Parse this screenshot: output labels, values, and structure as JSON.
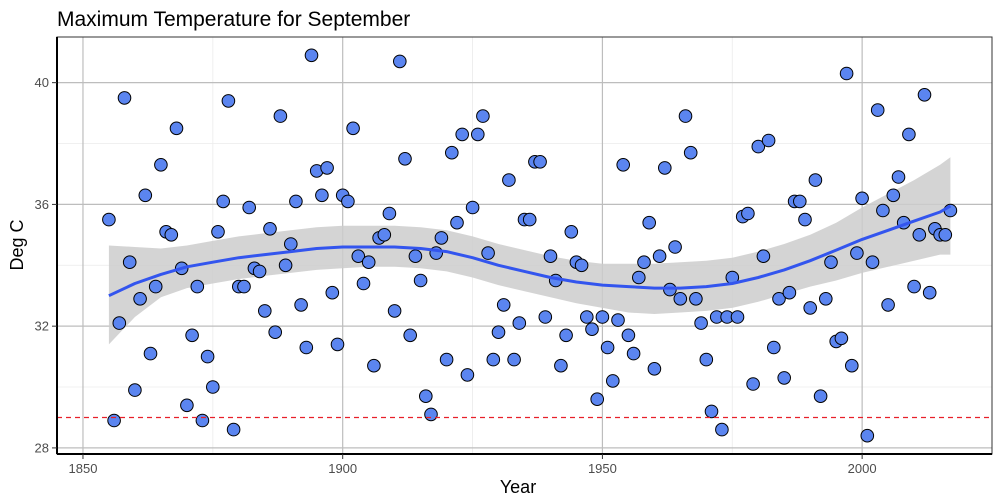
{
  "chart_data": {
    "type": "scatter",
    "title": "Maximum Temperature for September",
    "xlabel": "Year",
    "ylabel": "Deg C",
    "xlim": [
      1845,
      2025
    ],
    "ylim": [
      27.8,
      41.5
    ],
    "x_ticks": [
      1850,
      1900,
      1950,
      2000
    ],
    "y_ticks": [
      28,
      32,
      36,
      40
    ],
    "x_minor_ticks": [
      1875,
      1925,
      1975
    ],
    "y_minor_ticks": [
      30,
      34,
      38
    ],
    "grid": true,
    "point_fill": "#5b85f0",
    "point_stroke": "#000000",
    "smooth_color": "#3355ee",
    "ribbon_color": "#cccccc",
    "reference_line": {
      "y": 29.0,
      "color": "#e8202a",
      "style": "dashed"
    },
    "points": [
      [
        1855,
        35.5
      ],
      [
        1856,
        28.9
      ],
      [
        1857,
        32.1
      ],
      [
        1858,
        39.5
      ],
      [
        1859,
        34.1
      ],
      [
        1860,
        29.9
      ],
      [
        1861,
        32.9
      ],
      [
        1862,
        36.3
      ],
      [
        1863,
        31.1
      ],
      [
        1864,
        33.3
      ],
      [
        1865,
        37.3
      ],
      [
        1866,
        35.1
      ],
      [
        1867,
        35.0
      ],
      [
        1868,
        38.5
      ],
      [
        1869,
        33.9
      ],
      [
        1870,
        29.4
      ],
      [
        1871,
        31.7
      ],
      [
        1872,
        33.3
      ],
      [
        1873,
        28.9
      ],
      [
        1874,
        31.0
      ],
      [
        1875,
        30.0
      ],
      [
        1876,
        35.1
      ],
      [
        1877,
        36.1
      ],
      [
        1878,
        39.4
      ],
      [
        1879,
        28.6
      ],
      [
        1880,
        33.3
      ],
      [
        1881,
        33.3
      ],
      [
        1882,
        35.9
      ],
      [
        1883,
        33.9
      ],
      [
        1884,
        33.8
      ],
      [
        1885,
        32.5
      ],
      [
        1886,
        35.2
      ],
      [
        1887,
        31.8
      ],
      [
        1888,
        38.9
      ],
      [
        1889,
        34.0
      ],
      [
        1890,
        34.7
      ],
      [
        1891,
        36.1
      ],
      [
        1892,
        32.7
      ],
      [
        1893,
        31.3
      ],
      [
        1894,
        40.9
      ],
      [
        1895,
        37.1
      ],
      [
        1896,
        36.3
      ],
      [
        1897,
        37.2
      ],
      [
        1898,
        33.1
      ],
      [
        1899,
        31.4
      ],
      [
        1900,
        36.3
      ],
      [
        1901,
        36.1
      ],
      [
        1902,
        38.5
      ],
      [
        1903,
        34.3
      ],
      [
        1904,
        33.4
      ],
      [
        1905,
        34.1
      ],
      [
        1906,
        30.7
      ],
      [
        1907,
        34.9
      ],
      [
        1908,
        35.0
      ],
      [
        1909,
        35.7
      ],
      [
        1910,
        32.5
      ],
      [
        1911,
        40.7
      ],
      [
        1912,
        37.5
      ],
      [
        1913,
        31.7
      ],
      [
        1914,
        34.3
      ],
      [
        1915,
        33.5
      ],
      [
        1916,
        29.7
      ],
      [
        1917,
        29.1
      ],
      [
        1918,
        34.4
      ],
      [
        1919,
        34.9
      ],
      [
        1920,
        30.9
      ],
      [
        1921,
        37.7
      ],
      [
        1922,
        35.4
      ],
      [
        1923,
        38.3
      ],
      [
        1924,
        30.4
      ],
      [
        1925,
        35.9
      ],
      [
        1926,
        38.3
      ],
      [
        1927,
        38.9
      ],
      [
        1928,
        34.4
      ],
      [
        1929,
        30.9
      ],
      [
        1930,
        31.8
      ],
      [
        1931,
        32.7
      ],
      [
        1932,
        36.8
      ],
      [
        1933,
        30.9
      ],
      [
        1934,
        32.1
      ],
      [
        1935,
        35.5
      ],
      [
        1936,
        35.5
      ],
      [
        1937,
        37.4
      ],
      [
        1938,
        37.4
      ],
      [
        1939,
        32.3
      ],
      [
        1940,
        34.3
      ],
      [
        1941,
        33.5
      ],
      [
        1942,
        30.7
      ],
      [
        1943,
        31.7
      ],
      [
        1944,
        35.1
      ],
      [
        1945,
        34.1
      ],
      [
        1946,
        34.0
      ],
      [
        1947,
        32.3
      ],
      [
        1948,
        31.9
      ],
      [
        1949,
        29.6
      ],
      [
        1950,
        32.3
      ],
      [
        1951,
        31.3
      ],
      [
        1952,
        30.2
      ],
      [
        1953,
        32.2
      ],
      [
        1954,
        37.3
      ],
      [
        1955,
        31.7
      ],
      [
        1956,
        31.1
      ],
      [
        1957,
        33.6
      ],
      [
        1958,
        34.1
      ],
      [
        1959,
        35.4
      ],
      [
        1960,
        30.6
      ],
      [
        1961,
        34.3
      ],
      [
        1962,
        37.2
      ],
      [
        1963,
        33.2
      ],
      [
        1964,
        34.6
      ],
      [
        1965,
        32.9
      ],
      [
        1966,
        38.9
      ],
      [
        1967,
        37.7
      ],
      [
        1968,
        32.9
      ],
      [
        1969,
        32.1
      ],
      [
        1970,
        30.9
      ],
      [
        1971,
        29.2
      ],
      [
        1972,
        32.3
      ],
      [
        1973,
        28.6
      ],
      [
        1974,
        32.3
      ],
      [
        1975,
        33.6
      ],
      [
        1976,
        32.3
      ],
      [
        1977,
        35.6
      ],
      [
        1978,
        35.7
      ],
      [
        1979,
        30.1
      ],
      [
        1980,
        37.9
      ],
      [
        1981,
        34.3
      ],
      [
        1982,
        38.1
      ],
      [
        1983,
        31.3
      ],
      [
        1984,
        32.9
      ],
      [
        1985,
        30.3
      ],
      [
        1986,
        33.1
      ],
      [
        1987,
        36.1
      ],
      [
        1988,
        36.1
      ],
      [
        1989,
        35.5
      ],
      [
        1990,
        32.6
      ],
      [
        1991,
        36.8
      ],
      [
        1992,
        29.7
      ],
      [
        1993,
        32.9
      ],
      [
        1994,
        34.1
      ],
      [
        1995,
        31.5
      ],
      [
        1996,
        31.6
      ],
      [
        1997,
        40.3
      ],
      [
        1998,
        30.7
      ],
      [
        1999,
        34.4
      ],
      [
        2000,
        36.2
      ],
      [
        2001,
        28.4
      ],
      [
        2002,
        34.1
      ],
      [
        2003,
        39.1
      ],
      [
        2004,
        35.8
      ],
      [
        2005,
        32.7
      ],
      [
        2006,
        36.3
      ],
      [
        2007,
        36.9
      ],
      [
        2008,
        35.4
      ],
      [
        2009,
        38.3
      ],
      [
        2010,
        33.3
      ],
      [
        2011,
        35.0
      ],
      [
        2012,
        39.6
      ],
      [
        2013,
        33.1
      ],
      [
        2014,
        35.2
      ],
      [
        2015,
        35.0
      ],
      [
        2016,
        35.0
      ],
      [
        2017,
        35.8
      ]
    ],
    "smooth": {
      "x": [
        1855,
        1860,
        1865,
        1870,
        1875,
        1880,
        1885,
        1890,
        1895,
        1900,
        1905,
        1910,
        1915,
        1920,
        1925,
        1930,
        1935,
        1940,
        1945,
        1950,
        1955,
        1960,
        1965,
        1970,
        1975,
        1980,
        1985,
        1990,
        1995,
        2000,
        2005,
        2010,
        2015,
        2017
      ],
      "y": [
        33.0,
        33.4,
        33.7,
        33.95,
        34.1,
        34.25,
        34.35,
        34.45,
        34.55,
        34.6,
        34.6,
        34.6,
        34.55,
        34.45,
        34.25,
        34.0,
        33.8,
        33.6,
        33.45,
        33.35,
        33.3,
        33.25,
        33.25,
        33.3,
        33.4,
        33.6,
        33.85,
        34.15,
        34.5,
        34.85,
        35.15,
        35.45,
        35.75,
        35.95
      ],
      "lower": [
        31.4,
        32.3,
        32.95,
        33.25,
        33.4,
        33.55,
        33.65,
        33.75,
        33.85,
        33.9,
        33.95,
        33.95,
        33.9,
        33.8,
        33.6,
        33.35,
        33.15,
        32.95,
        32.75,
        32.6,
        32.45,
        32.4,
        32.45,
        32.5,
        32.6,
        32.8,
        33.05,
        33.3,
        33.5,
        33.75,
        33.95,
        34.15,
        34.35,
        34.35
      ],
      "upper": [
        34.65,
        34.6,
        34.55,
        34.65,
        34.8,
        34.95,
        35.05,
        35.15,
        35.25,
        35.3,
        35.3,
        35.3,
        35.25,
        35.15,
        34.95,
        34.7,
        34.5,
        34.3,
        34.15,
        34.05,
        34.05,
        34.05,
        34.1,
        34.15,
        34.25,
        34.45,
        34.7,
        35.0,
        35.4,
        35.9,
        36.35,
        36.8,
        37.3,
        37.55
      ]
    }
  }
}
